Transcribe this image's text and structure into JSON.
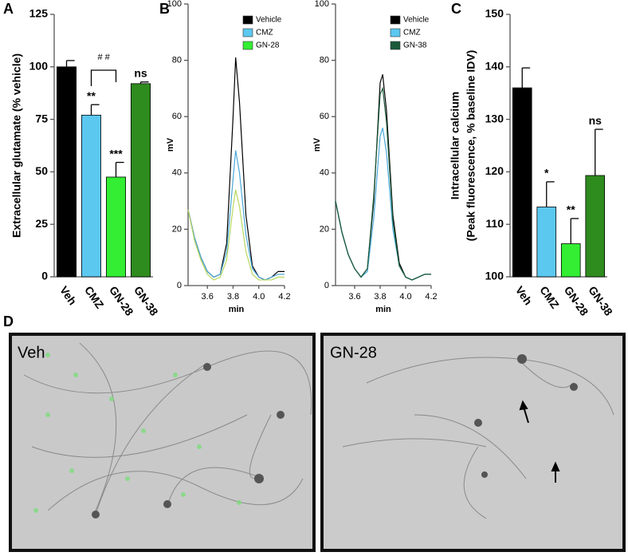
{
  "chart_data": [
    {
      "type": "bar",
      "panel": "A",
      "ylabel": "Extracellular glutamate (% vehicle)",
      "categories": [
        "Veh",
        "CMZ",
        "GN-28",
        "GN-38"
      ],
      "values": [
        100,
        77,
        47.5,
        92
      ],
      "errors": [
        3,
        5,
        7,
        0.8
      ],
      "colors": [
        "#000000",
        "#5bc8f0",
        "#33ee33",
        "#2e8b1e"
      ],
      "annotations": [
        null,
        "**",
        "***",
        "ns"
      ],
      "bracket_label": "# #",
      "ylim": [
        0,
        125
      ],
      "yticks": [
        0,
        25,
        50,
        75,
        100,
        125
      ]
    },
    {
      "type": "line",
      "panel": "B",
      "ylabel": "mV",
      "xlabel": "min",
      "x": [
        3.45,
        3.5,
        3.55,
        3.6,
        3.65,
        3.7,
        3.75,
        3.8,
        3.82,
        3.85,
        3.9,
        3.95,
        4.0,
        4.05,
        4.1,
        4.15,
        4.2
      ],
      "series": [
        {
          "name": "Vehicle",
          "color": "#000000",
          "values": [
            27,
            17,
            10,
            5,
            3,
            4,
            15,
            60,
            81,
            65,
            25,
            7,
            3,
            2,
            3,
            5,
            5
          ]
        },
        {
          "name": "CMZ",
          "color": "#4aa8d8",
          "values": [
            27,
            17,
            10,
            5,
            3,
            4,
            12,
            38,
            48,
            40,
            18,
            6,
            3,
            2,
            3,
            4,
            4
          ]
        },
        {
          "name": "GN-28",
          "color": "#b8d860",
          "values": [
            27,
            16,
            9,
            4,
            2,
            3,
            9,
            28,
            34,
            28,
            12,
            4,
            2,
            2,
            2,
            3,
            3
          ]
        }
      ],
      "legend_colors": [
        "#000000",
        "#5bc8f0",
        "#33ee33"
      ],
      "xlim": [
        3.45,
        4.2
      ],
      "xticks": [
        3.6,
        3.8,
        {
          "value": 4,
          "label": "4.0"
        },
        4.2
      ],
      "ylim": [
        0,
        100
      ],
      "yticks": [
        0,
        20,
        40,
        60,
        80,
        100
      ]
    },
    {
      "type": "line",
      "ylabel": "mV",
      "xlabel": "min",
      "x": [
        3.45,
        3.5,
        3.55,
        3.6,
        3.65,
        3.7,
        3.75,
        3.8,
        3.82,
        3.85,
        3.9,
        3.95,
        4.0,
        4.05,
        4.1,
        4.15,
        4.2
      ],
      "series": [
        {
          "name": "Vehicle",
          "color": "#000000",
          "values": [
            30,
            19,
            11,
            6,
            3,
            6,
            30,
            72,
            75,
            62,
            25,
            8,
            3,
            2,
            3,
            4,
            4
          ]
        },
        {
          "name": "CMZ",
          "color": "#4aa8d8",
          "values": [
            30,
            19,
            11,
            6,
            3,
            5,
            24,
            53,
            56,
            47,
            20,
            7,
            3,
            2,
            3,
            4,
            4
          ]
        },
        {
          "name": "GN-38",
          "color": "#1a5a3a",
          "values": [
            30,
            19,
            11,
            6,
            3,
            6,
            32,
            68,
            70,
            58,
            23,
            7,
            3,
            2,
            3,
            4,
            4
          ]
        }
      ],
      "legend_colors": [
        "#000000",
        "#5bc8f0",
        "#1a5a3a"
      ],
      "xlim": [
        3.45,
        4.2
      ],
      "xticks": [
        3.6,
        3.8,
        {
          "value": 4,
          "label": "4.0"
        },
        4.2
      ],
      "ylim": [
        0,
        100
      ],
      "yticks": [
        0,
        20,
        40,
        60,
        80,
        100
      ]
    },
    {
      "type": "bar",
      "panel": "C",
      "ylabel": [
        "Intracellular calcium",
        "(Peak fluorescence, % baseline IDV)"
      ],
      "categories": [
        "Veh",
        "CMZ",
        "GN-28",
        "GN-38"
      ],
      "values": [
        136,
        113.3,
        106.3,
        119.3
      ],
      "errors": [
        3.8,
        4.8,
        4.8,
        8.8
      ],
      "colors": [
        "#000000",
        "#5bc8f0",
        "#33ee33",
        "#2e8b1e"
      ],
      "annotations": [
        null,
        "*",
        "**",
        "ns"
      ],
      "ylim": [
        100,
        150
      ],
      "yticks": [
        100,
        110,
        120,
        130,
        140,
        150
      ]
    }
  ],
  "figure": {
    "panel": "D",
    "images": [
      {
        "label": "Veh"
      },
      {
        "label": "GN-28"
      }
    ]
  }
}
